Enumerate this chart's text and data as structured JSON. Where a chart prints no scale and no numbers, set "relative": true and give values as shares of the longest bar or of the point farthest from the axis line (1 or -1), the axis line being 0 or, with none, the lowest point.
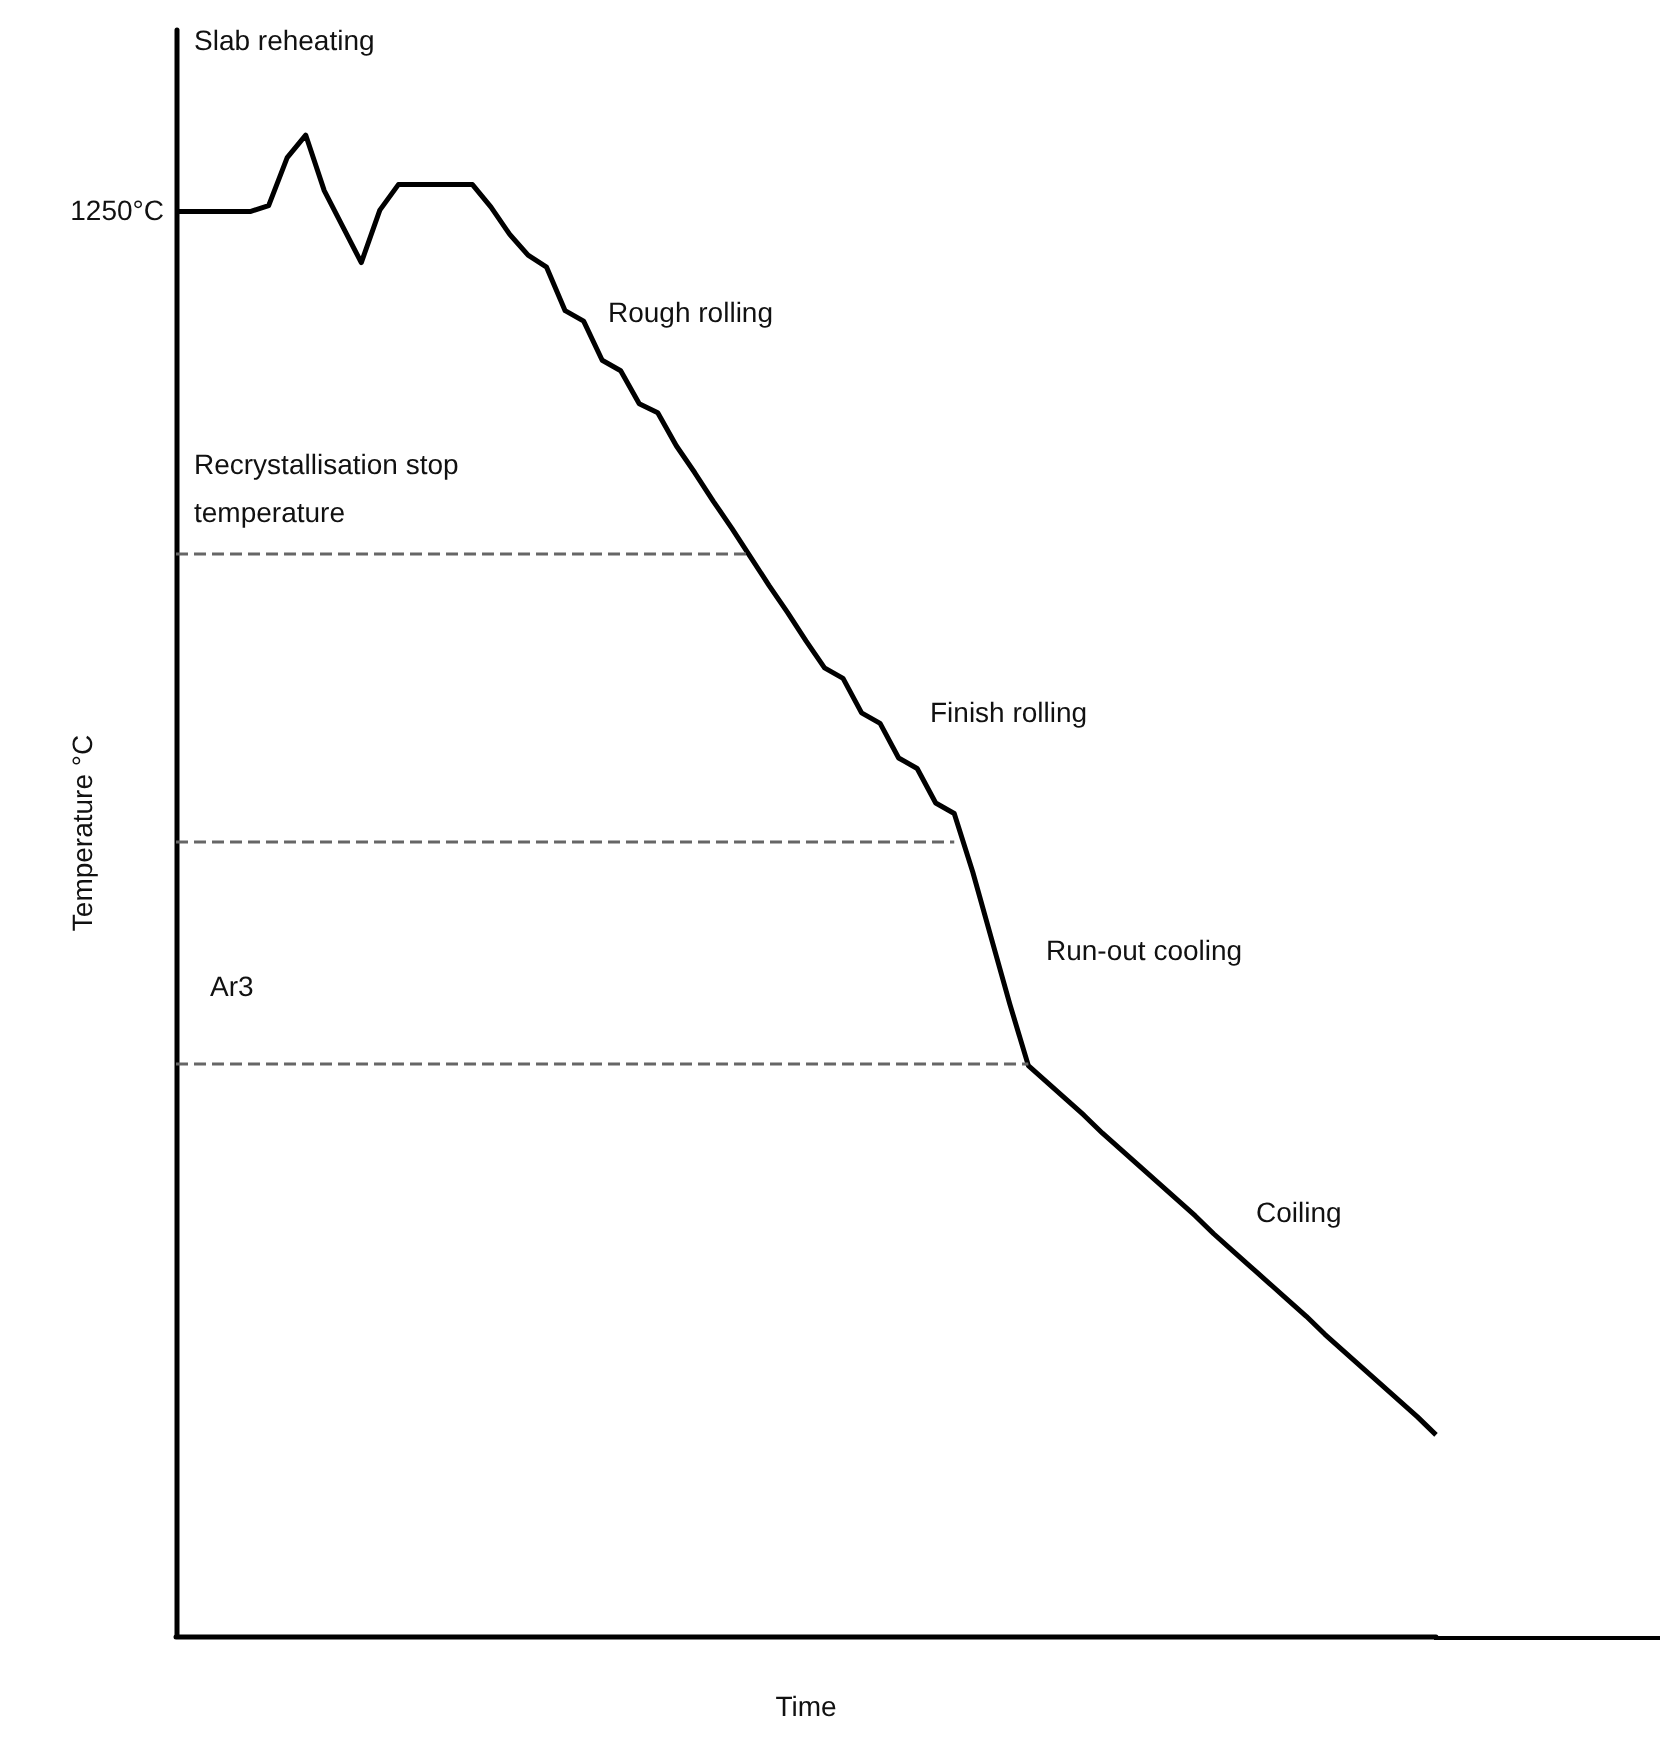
{
  "chart_data": {
    "type": "line",
    "relative": true,
    "xlabel": "Time",
    "ylabel": "Temperature °C",
    "categories": [
      null,
      null,
      null,
      null,
      null,
      null,
      null,
      null,
      null,
      null,
      null,
      null,
      null,
      null,
      null,
      null,
      null,
      null,
      null,
      null,
      null,
      null,
      null,
      null,
      null,
      null,
      null,
      null,
      null,
      null,
      null,
      null,
      null,
      null,
      null,
      null,
      null,
      null,
      null,
      null,
      null,
      null,
      null,
      null,
      null,
      null,
      null,
      null,
      null,
      null,
      null,
      null,
      null,
      null,
      null,
      null,
      null,
      null,
      null,
      null,
      null,
      null,
      null,
      null,
      null,
      null,
      null,
      null,
      null
    ],
    "grid": false,
    "marker": "none",
    "line_style": "solid",
    "series": [
      {
        "color": "#000000",
        "values": [
          0.949,
          0.949,
          0.949,
          0.949,
          0.949,
          0.953,
          0.985,
          1,
          0.963,
          0.939,
          0.915,
          0.95,
          0.967,
          0.967,
          0.967,
          0.967,
          0.967,
          0.952,
          0.934,
          0.92,
          0.912,
          0.883,
          0.876,
          0.85,
          0.843,
          0.821,
          0.815,
          0.793,
          0.775,
          0.756,
          0.738,
          0.719,
          0.7,
          0.682,
          0.663,
          0.645,
          0.638,
          0.615,
          0.608,
          0.585,
          0.578,
          0.555,
          0.548,
          0.509,
          0.465,
          0.421,
          0.38,
          0.369,
          0.358,
          0.347,
          0.335,
          0.324,
          0.313,
          0.302,
          0.291,
          0.28,
          0.268,
          0.257,
          0.246,
          0.235,
          0.224,
          0.213,
          0.201,
          0.19,
          0.179,
          0.168,
          0.157,
          0.146,
          0.134
        ]
      }
    ],
    "ref_lines": [
      {
        "axis": "y",
        "value": 0.721,
        "color": "#666666",
        "line_style": "dashed"
      },
      {
        "axis": "y",
        "value": 0.53,
        "color": "#666666",
        "line_style": "dashed"
      },
      {
        "axis": "y",
        "value": 0.381,
        "color": "#666666",
        "line_style": "dashed"
      }
    ],
    "annotations": [
      "1250°C",
      "Slab reheating",
      "Rough rolling",
      "Recrystallisation stop\ntemperature",
      "Finish rolling",
      "Run-out cooling",
      "Coiling",
      "Ar3"
    ]
  }
}
